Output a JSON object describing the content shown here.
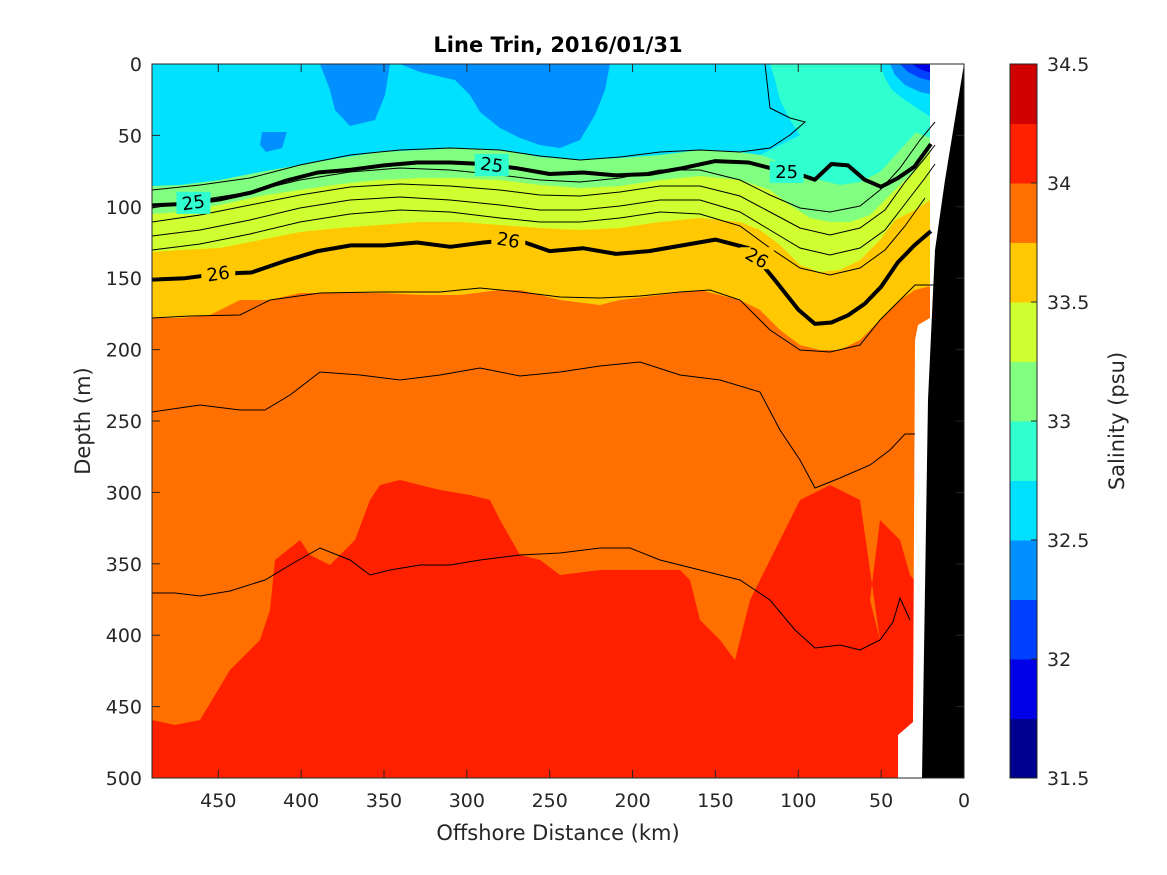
{
  "chart_data": {
    "type": "heatmap",
    "subtype": "filled-contour ocean section",
    "title": "Line Trin, 2016/01/31",
    "xlabel": "Offshore Distance (km)",
    "ylabel": "Depth (m)",
    "colorbar_label": "Salinity (psu)",
    "xlim": [
      490,
      0
    ],
    "x_reversed": true,
    "ylim": [
      0,
      500
    ],
    "y_reversed": true,
    "x_ticks": [
      "450",
      "400",
      "350",
      "300",
      "250",
      "200",
      "150",
      "100",
      "50",
      "0"
    ],
    "y_ticks": [
      "0",
      "50",
      "100",
      "150",
      "200",
      "250",
      "300",
      "350",
      "400",
      "450",
      "500"
    ],
    "colorbar_ticks": [
      "31.5",
      "32",
      "32.5",
      "33",
      "33.5",
      "34",
      "34.5"
    ],
    "colorbar_levels": [
      31.5,
      31.75,
      32.0,
      32.25,
      32.5,
      32.75,
      33.0,
      33.25,
      33.5,
      33.75,
      34.0,
      34.25,
      34.5
    ],
    "colorbar_colors": [
      "#00008f",
      "#0000e6",
      "#0040ff",
      "#0090ff",
      "#00e0ff",
      "#30ffcf",
      "#80ff80",
      "#cfff30",
      "#ffc800",
      "#ff7000",
      "#ff2000",
      "#d00000"
    ],
    "contour_labels": [
      "25",
      "25",
      "25",
      "26",
      "26",
      "26"
    ],
    "isopycnals": [
      {
        "name": "25",
        "x": [
          490,
          470,
          450,
          430,
          410,
          390,
          370,
          350,
          330,
          310,
          290,
          270,
          250,
          230,
          210,
          190,
          170,
          150,
          130,
          110,
          100,
          90,
          80,
          70,
          60,
          50,
          40,
          30,
          20
        ],
        "depth": [
          99,
          98,
          95,
          90,
          82,
          76,
          74,
          71,
          69,
          69,
          70,
          73,
          77,
          76,
          78,
          77,
          73,
          68,
          69,
          75,
          77,
          81,
          70,
          71,
          81,
          86,
          80,
          72,
          56
        ]
      },
      {
        "name": "26",
        "x": [
          490,
          470,
          450,
          430,
          410,
          390,
          370,
          350,
          330,
          310,
          290,
          270,
          250,
          230,
          210,
          190,
          170,
          150,
          130,
          115,
          100,
          90,
          80,
          70,
          60,
          50,
          40,
          30,
          20
        ],
        "depth": [
          151,
          150,
          147,
          146,
          138,
          131,
          127,
          127,
          125,
          128,
          125,
          123,
          131,
          129,
          133,
          131,
          127,
          123,
          129,
          150,
          172,
          182,
          181,
          176,
          168,
          156,
          139,
          127,
          117
        ]
      }
    ],
    "salinity_regions": [
      {
        "salinity_range": "32.25-32.5",
        "region": "surface patches 0-80 m"
      },
      {
        "salinity_range": "32.5-32.75",
        "region": "surface layer 0-90 m"
      },
      {
        "salinity_range": "32.75-33.25",
        "region": "pycnocline and nearshore surface"
      },
      {
        "salinity_range": "33.5-33.75",
        "region": "130-200 m"
      },
      {
        "salinity_range": "33.75-34.0",
        "region": "160-480 m"
      },
      {
        "salinity_range": "34.0-34.25",
        "region": "below ~300-460 m"
      }
    ],
    "colormap": "jet"
  }
}
